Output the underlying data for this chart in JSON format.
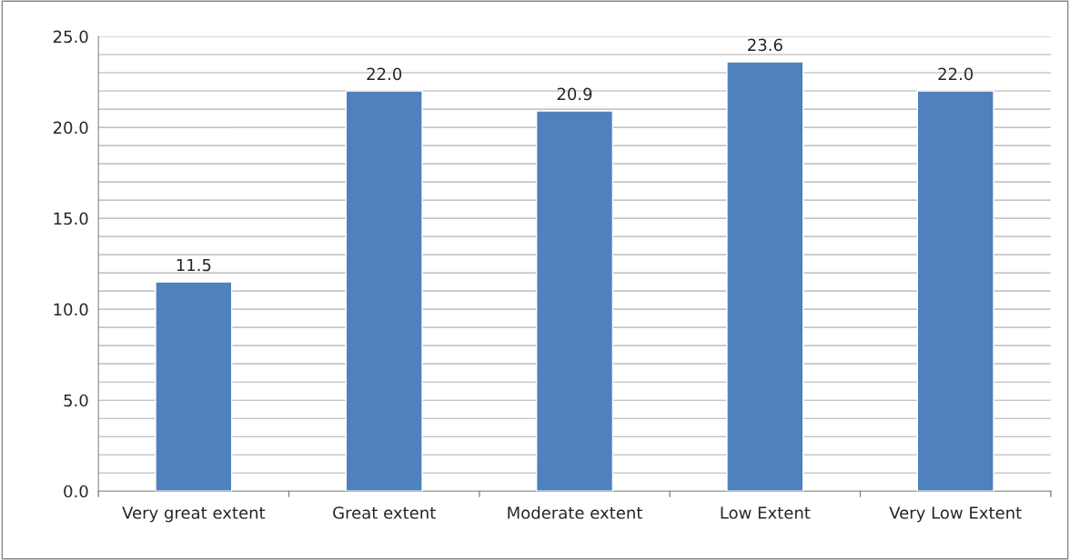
{
  "chart_data": {
    "type": "bar",
    "categories": [
      "Very great extent",
      "Great extent",
      "Moderate extent",
      "Low Extent",
      "Very Low Extent"
    ],
    "values": [
      11.5,
      22.0,
      20.9,
      23.6,
      22.0
    ],
    "color": "#4f81bd",
    "ylim": [
      0,
      25
    ],
    "yticks": [
      {
        "value": 0,
        "label": "0.0"
      },
      {
        "value": 1,
        "label": null
      },
      {
        "value": 2,
        "label": null
      },
      {
        "value": 3,
        "label": null
      },
      {
        "value": 4,
        "label": null
      },
      {
        "value": 5,
        "label": "5.0"
      },
      {
        "value": 6,
        "label": null
      },
      {
        "value": 7,
        "label": null
      },
      {
        "value": 8,
        "label": null
      },
      {
        "value": 9,
        "label": null
      },
      {
        "value": 10,
        "label": "10.0"
      },
      {
        "value": 11,
        "label": null
      },
      {
        "value": 12,
        "label": null
      },
      {
        "value": 13,
        "label": null
      },
      {
        "value": 14,
        "label": null
      },
      {
        "value": 15,
        "label": "15.0"
      },
      {
        "value": 16,
        "label": null
      },
      {
        "value": 17,
        "label": null
      },
      {
        "value": 18,
        "label": null
      },
      {
        "value": 19,
        "label": null
      },
      {
        "value": 20,
        "label": "20.0"
      },
      {
        "value": 21,
        "label": null
      },
      {
        "value": 22,
        "label": null
      },
      {
        "value": 23,
        "label": null
      },
      {
        "value": 24,
        "label": null
      },
      {
        "value": 25,
        "label": "25.0"
      }
    ],
    "grid": "y",
    "value_labels": [
      "11.5",
      "22.0",
      "20.9",
      "23.6",
      "22.0"
    ]
  }
}
